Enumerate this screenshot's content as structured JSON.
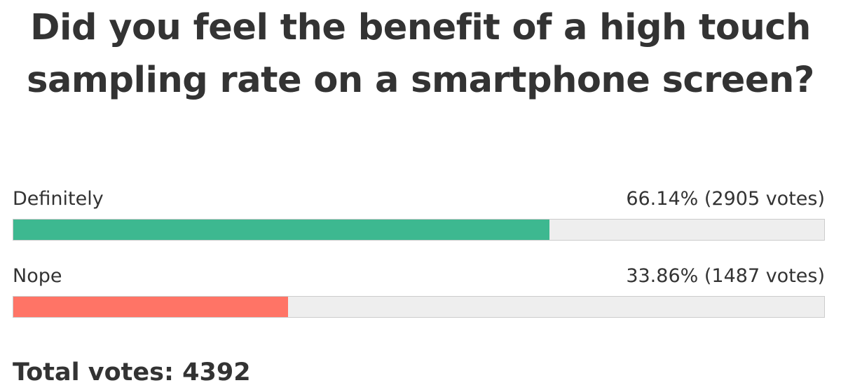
{
  "poll": {
    "question": "Did you feel the benefit of a high touch sampling rate on a smartphone screen?",
    "options": [
      {
        "label": "Definitely",
        "percent_text": "66.14%",
        "votes_text": "(2905 votes)",
        "percent": 66.14,
        "votes": 2905,
        "color": "#3db890"
      },
      {
        "label": "Nope",
        "percent_text": "33.86%",
        "votes_text": "(1487 votes)",
        "percent": 33.86,
        "votes": 1487,
        "color": "#ff7466"
      }
    ],
    "total_text": "Total votes: 4392",
    "total_votes": 4392
  }
}
